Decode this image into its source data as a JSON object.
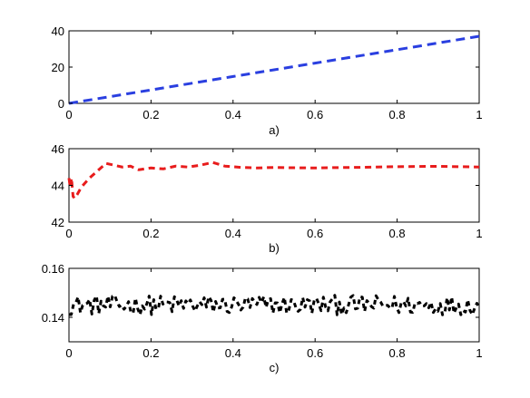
{
  "chart_data": [
    {
      "type": "line",
      "caption": "a)",
      "xlim": [
        0,
        1
      ],
      "ylim": [
        0,
        40
      ],
      "xticks": [
        "0",
        "0.2",
        "0.4",
        "0.6",
        "0.8",
        "1"
      ],
      "yticks": [
        "0",
        "20",
        "40"
      ],
      "color": "#2a3fe0",
      "line_style": "dashed",
      "grid": false,
      "x": [
        0,
        0.1,
        0.2,
        0.3,
        0.4,
        0.5,
        0.6,
        0.7,
        0.8,
        0.9,
        1.0
      ],
      "y": [
        0,
        3.7,
        7.4,
        11.1,
        14.8,
        18.5,
        22.2,
        25.9,
        29.6,
        33.3,
        37.0
      ]
    },
    {
      "type": "line",
      "caption": "b)",
      "xlim": [
        0,
        1
      ],
      "ylim": [
        42,
        46
      ],
      "xticks": [
        "0",
        "0.2",
        "0.4",
        "0.6",
        "0.8",
        "1"
      ],
      "yticks": [
        "42",
        "44",
        "46"
      ],
      "color": "#e81c1c",
      "line_style": "dashed",
      "grid": false,
      "x": [
        0,
        0.003,
        0.006,
        0.01,
        0.014,
        0.02,
        0.03,
        0.05,
        0.07,
        0.09,
        0.11,
        0.13,
        0.15,
        0.17,
        0.2,
        0.23,
        0.26,
        0.29,
        0.32,
        0.35,
        0.38,
        0.42,
        0.46,
        0.5,
        0.55,
        0.6,
        0.65,
        0.7,
        0.75,
        0.8,
        0.85,
        0.9,
        0.95,
        1.0
      ],
      "y": [
        44.4,
        43.9,
        44.4,
        43.4,
        43.3,
        43.5,
        43.9,
        44.4,
        44.8,
        45.2,
        45.1,
        45.0,
        45.05,
        44.85,
        44.95,
        44.9,
        45.05,
        45.0,
        45.1,
        45.25,
        45.05,
        44.98,
        44.95,
        44.98,
        44.96,
        44.95,
        44.97,
        44.98,
        45.0,
        45.02,
        45.03,
        45.04,
        45.02,
        45.0
      ]
    },
    {
      "type": "line",
      "caption": "c)",
      "xlim": [
        0,
        1
      ],
      "ylim": [
        0.13,
        0.16
      ],
      "xticks": [
        "0",
        "0.2",
        "0.4",
        "0.6",
        "0.8",
        "1"
      ],
      "yticks": [
        "0.14",
        "0.16"
      ],
      "color": "#000000",
      "line_style": "dashed",
      "grid": false,
      "y_mean": 0.145,
      "y_amplitude": 0.004,
      "n_points": 180
    }
  ]
}
